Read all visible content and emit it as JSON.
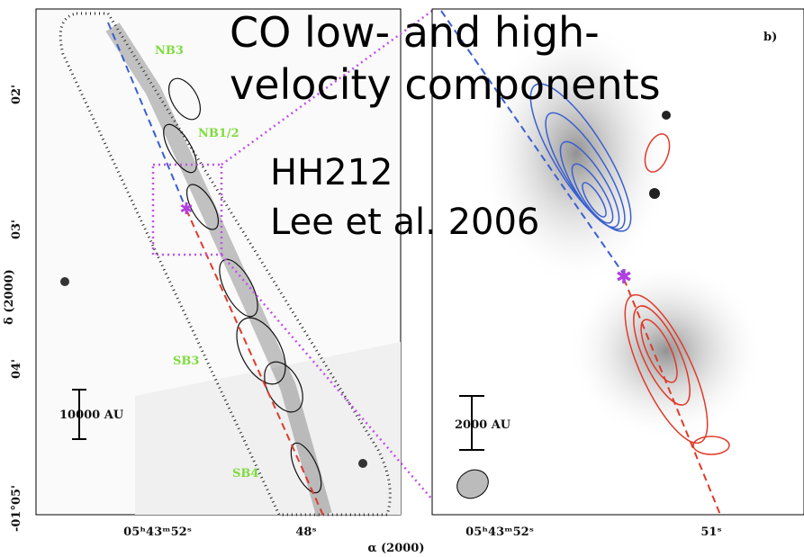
{
  "overlay": {
    "title_lines": [
      "CO low- and high-",
      "velocity components"
    ],
    "object": "HH212",
    "reference": "Lee et al. 2006"
  },
  "left_panel": {
    "knots": [
      "NB3",
      "NB1/2",
      "SB3",
      "SB4"
    ],
    "scale_bar": "10000 AU",
    "y_axis_label": "δ (2000)",
    "y_ticks": [
      "02'",
      "03'",
      "04'",
      "-01°05'"
    ],
    "x_ticks": [
      "05ʰ43ᵐ52ˢ",
      "48ˢ"
    ]
  },
  "right_panel": {
    "panel_label": "b)",
    "scale_bar": "2000 AU",
    "x_ticks": [
      "05ʰ43ᵐ52ˢ",
      "51ˢ"
    ]
  },
  "x_axis_label": "α (2000)"
}
